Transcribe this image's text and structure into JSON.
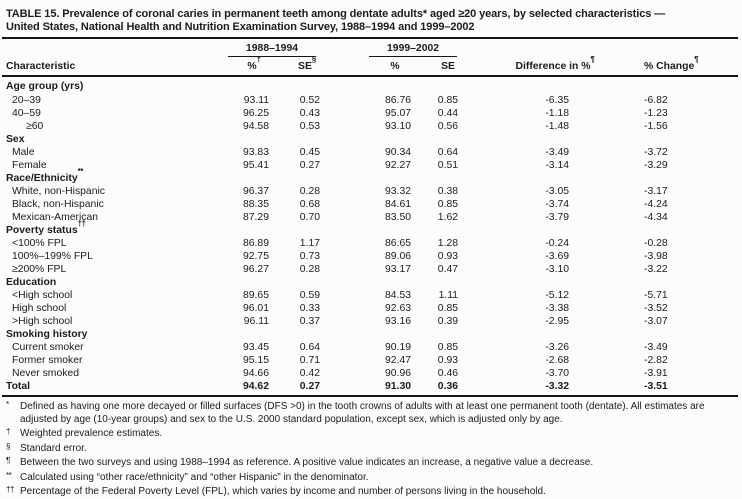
{
  "title_lines": [
    "TABLE 15. Prevalence of coronal caries in permanent teeth among dentate adults* aged ≥20 years, by selected characteristics —",
    "United States, National Health and Nutrition Examination Survey, 1988–1994 and 1999–2002"
  ],
  "table": {
    "groups": [
      {
        "label": "1988–1994"
      },
      {
        "label": "1999–2002"
      }
    ],
    "columns": [
      {
        "label": "Characteristic",
        "sup": ""
      },
      {
        "label": "%",
        "sup": "†"
      },
      {
        "label": "SE",
        "sup": "§"
      },
      {
        "label": "%",
        "sup": ""
      },
      {
        "label": "SE",
        "sup": ""
      },
      {
        "label": "Difference in %",
        "sup": "¶"
      },
      {
        "label": "% Change",
        "sup": "¶"
      }
    ],
    "rows": [
      {
        "type": "section",
        "label": "Age group (yrs)"
      },
      {
        "type": "data",
        "indent": 1,
        "label": "20–39",
        "v": [
          "93.11",
          "0.52",
          "86.76",
          "0.85",
          "-6.35",
          "-6.82"
        ]
      },
      {
        "type": "data",
        "indent": 1,
        "label": "40–59",
        "v": [
          "96.25",
          "0.43",
          "95.07",
          "0.44",
          "-1.18",
          "-1.23"
        ]
      },
      {
        "type": "data",
        "indent": 2,
        "label": "≥60",
        "v": [
          "94.58",
          "0.53",
          "93.10",
          "0.56",
          "-1.48",
          "-1.56"
        ]
      },
      {
        "type": "section",
        "label": "Sex"
      },
      {
        "type": "data",
        "indent": 1,
        "label": "Male",
        "v": [
          "93.83",
          "0.45",
          "90.34",
          "0.64",
          "-3.49",
          "-3.72"
        ]
      },
      {
        "type": "data",
        "indent": 1,
        "label": "Female",
        "v": [
          "95.41",
          "0.27",
          "92.27",
          "0.51",
          "-3.14",
          "-3.29"
        ]
      },
      {
        "type": "section",
        "label": "Race/Ethnicity",
        "sup": "**"
      },
      {
        "type": "data",
        "indent": 1,
        "label": "White, non-Hispanic",
        "v": [
          "96.37",
          "0.28",
          "93.32",
          "0.38",
          "-3.05",
          "-3.17"
        ]
      },
      {
        "type": "data",
        "indent": 1,
        "label": "Black, non-Hispanic",
        "v": [
          "88.35",
          "0.68",
          "84.61",
          "0.85",
          "-3.74",
          "-4.24"
        ]
      },
      {
        "type": "data",
        "indent": 1,
        "label": "Mexican-American",
        "v": [
          "87.29",
          "0.70",
          "83.50",
          "1.62",
          "-3.79",
          "-4.34"
        ]
      },
      {
        "type": "section",
        "label": "Poverty status",
        "sup": "††"
      },
      {
        "type": "data",
        "indent": 1,
        "label": "<100% FPL",
        "v": [
          "86.89",
          "1.17",
          "86.65",
          "1.28",
          "-0.24",
          "-0.28"
        ]
      },
      {
        "type": "data",
        "indent": 1,
        "label": "100%–199% FPL",
        "v": [
          "92.75",
          "0.73",
          "89.06",
          "0.93",
          "-3.69",
          "-3.98"
        ]
      },
      {
        "type": "data",
        "indent": 1,
        "label": "≥200% FPL",
        "v": [
          "96.27",
          "0.28",
          "93.17",
          "0.47",
          "-3.10",
          "-3.22"
        ]
      },
      {
        "type": "section",
        "label": "Education"
      },
      {
        "type": "data",
        "indent": 1,
        "label": "<High school",
        "v": [
          "89.65",
          "0.59",
          "84.53",
          "1.11",
          "-5.12",
          "-5.71"
        ]
      },
      {
        "type": "data",
        "indent": 1,
        "label": "High school",
        "v": [
          "96.01",
          "0.33",
          "92.63",
          "0.85",
          "-3.38",
          "-3.52"
        ]
      },
      {
        "type": "data",
        "indent": 1,
        "label": ">High school",
        "v": [
          "96.11",
          "0.37",
          "93.16",
          "0.39",
          "-2.95",
          "-3.07"
        ]
      },
      {
        "type": "section",
        "label": "Smoking history"
      },
      {
        "type": "data",
        "indent": 1,
        "label": "Current smoker",
        "v": [
          "93.45",
          "0.64",
          "90.19",
          "0.85",
          "-3.26",
          "-3.49"
        ]
      },
      {
        "type": "data",
        "indent": 1,
        "label": "Former smoker",
        "v": [
          "95.15",
          "0.71",
          "92.47",
          "0.93",
          "-2.68",
          "-2.82"
        ]
      },
      {
        "type": "data",
        "indent": 1,
        "label": "Never smoked",
        "v": [
          "94.66",
          "0.42",
          "90.96",
          "0.46",
          "-3.70",
          "-3.91"
        ]
      },
      {
        "type": "data",
        "indent": 0,
        "bold": true,
        "label": "Total",
        "v": [
          "94.62",
          "0.27",
          "91.30",
          "0.36",
          "-3.32",
          "-3.51"
        ]
      }
    ]
  },
  "footnotes": [
    {
      "marker": "*",
      "text": "Defined as having one more decayed or filled surfaces (DFS >0) in the tooth crowns of adults with at least one permanent tooth (dentate). All estimates are adjusted by age (10-year groups) and sex to the U.S. 2000 standard population, except sex, which is adjusted only by age."
    },
    {
      "marker": "†",
      "text": "Weighted prevalence estimates."
    },
    {
      "marker": "§",
      "text": "Standard error."
    },
    {
      "marker": "¶",
      "text": "Between the two surveys and using 1988–1994 as reference. A positive value indicates an increase, a negative value a decrease."
    },
    {
      "marker": "**",
      "text": "Calculated using “other race/ethnicity” and “other Hispanic” in the denominator."
    },
    {
      "marker": "††",
      "text": "Percentage of the Federal Poverty Level (FPL), which varies by income and number of persons living in the household."
    }
  ]
}
